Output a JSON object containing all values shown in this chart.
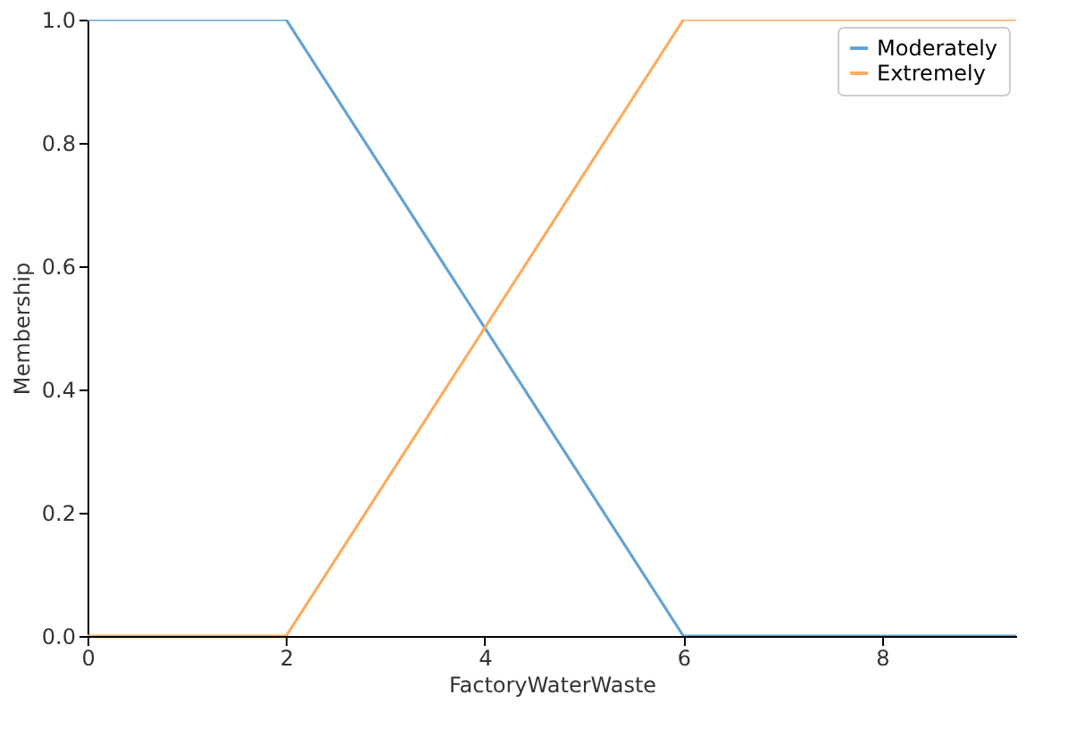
{
  "chart_data": {
    "type": "line",
    "xlabel": "FactoryWaterWaste",
    "ylabel": "Membership",
    "xlim": [
      0,
      9.35
    ],
    "xticks": [
      0,
      2,
      4,
      6,
      8
    ],
    "ylim": [
      0,
      1.0
    ],
    "yticks": [
      {
        "value": 0,
        "label": "0.0"
      },
      {
        "value": 0.2,
        "label": "0.2"
      },
      {
        "value": 0.4,
        "label": "0.4"
      },
      {
        "value": 0.6,
        "label": "0.6"
      },
      {
        "value": 0.8,
        "label": "0.8"
      },
      {
        "value": 1,
        "label": "1.0"
      }
    ],
    "grid": false,
    "legend": "top right",
    "marker": "none",
    "line_style": "solid",
    "series": [
      {
        "name": "Moderately",
        "color": "#62a3d6",
        "x": [
          0,
          2,
          6,
          9.35
        ],
        "values": [
          1,
          1,
          0,
          0
        ]
      },
      {
        "name": "Extremely",
        "color": "#ffaa5e",
        "x": [
          0,
          2,
          6,
          9.35
        ],
        "values": [
          0,
          0,
          1,
          1
        ]
      }
    ]
  }
}
